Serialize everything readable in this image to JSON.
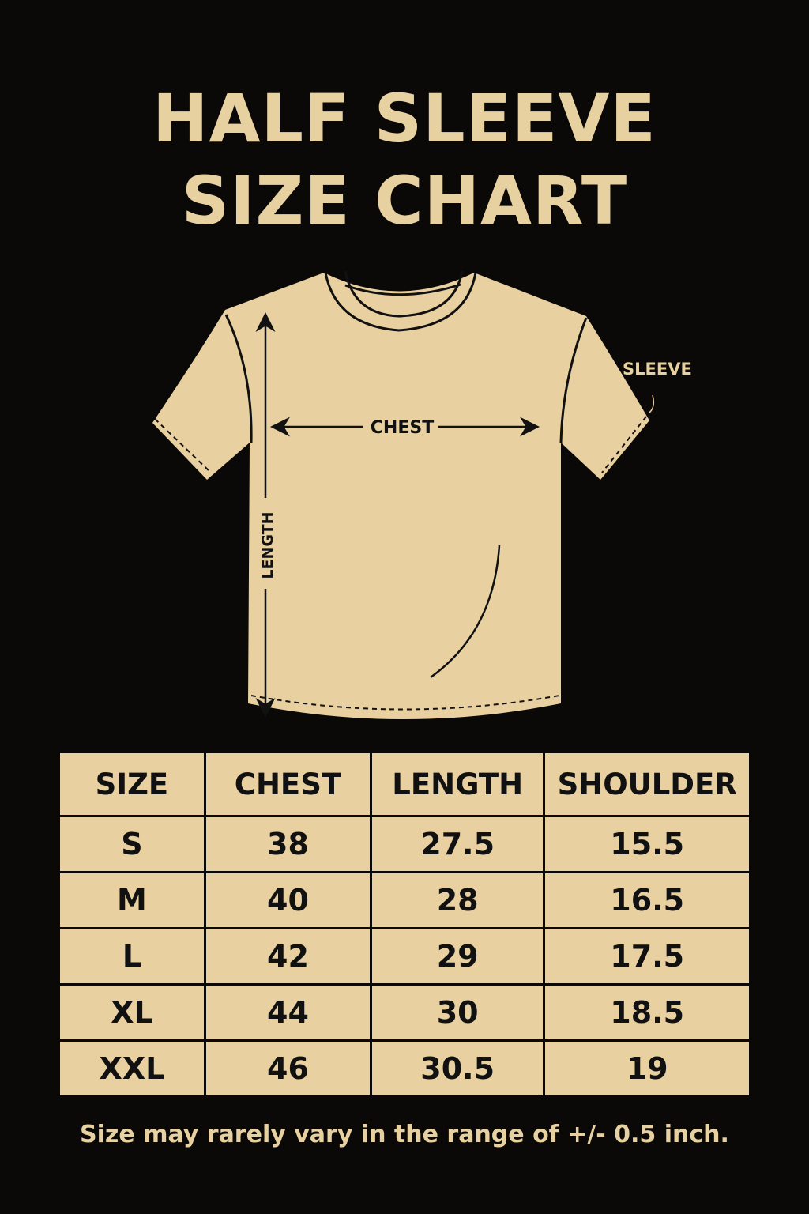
{
  "title": {
    "line1": "HALF SLEEVE",
    "line2": "SIZE CHART"
  },
  "diagram": {
    "chest_label": "CHEST",
    "length_label": "LENGTH",
    "sleeve_label": "SLEEVE",
    "garment_color": "#e8d0a0",
    "background_color": "#0b0907"
  },
  "table": {
    "headers": [
      "SIZE",
      "CHEST",
      "LENGTH",
      "SHOULDER"
    ],
    "rows": [
      [
        "S",
        "38",
        "27.5",
        "15.5"
      ],
      [
        "M",
        "40",
        "28",
        "16.5"
      ],
      [
        "L",
        "42",
        "29",
        "17.5"
      ],
      [
        "XL",
        "44",
        "30",
        "18.5"
      ],
      [
        "XXL",
        "46",
        "30.5",
        "19"
      ]
    ]
  },
  "note": "Size may rarely vary in the range of +/- 0.5 inch."
}
